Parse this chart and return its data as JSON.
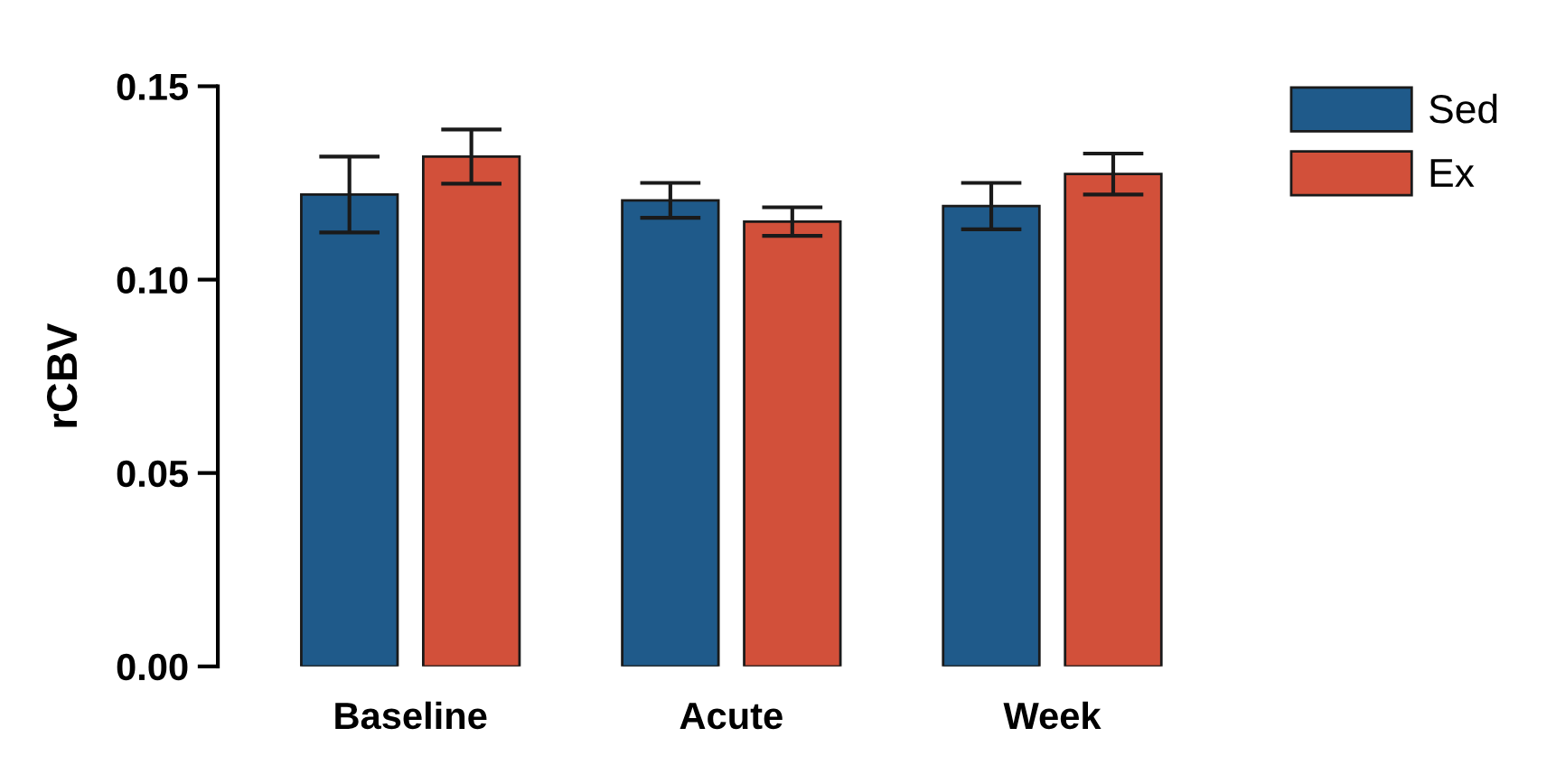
{
  "chart_data": {
    "type": "bar",
    "ylabel": "rCBV",
    "categories": [
      "Baseline",
      "Acute",
      "Week"
    ],
    "series": [
      {
        "name": "Sed",
        "color": "#1f5a8a",
        "values": [
          0.122,
          0.1205,
          0.119
        ],
        "errors": [
          0.0098,
          0.0045,
          0.006
        ]
      },
      {
        "name": "Ex",
        "color": "#d2503a",
        "values": [
          0.1318,
          0.115,
          0.1273
        ],
        "errors": [
          0.007,
          0.0037,
          0.0053
        ]
      }
    ],
    "ylim": [
      0,
      0.15
    ],
    "yticks": [
      {
        "value": 0,
        "label": "0.00"
      },
      {
        "value": 0.05,
        "label": "0.05"
      },
      {
        "value": 0.1,
        "label": "0.10"
      },
      {
        "value": 0.15,
        "label": "0.15"
      }
    ],
    "grid": false,
    "legend": "top right"
  }
}
